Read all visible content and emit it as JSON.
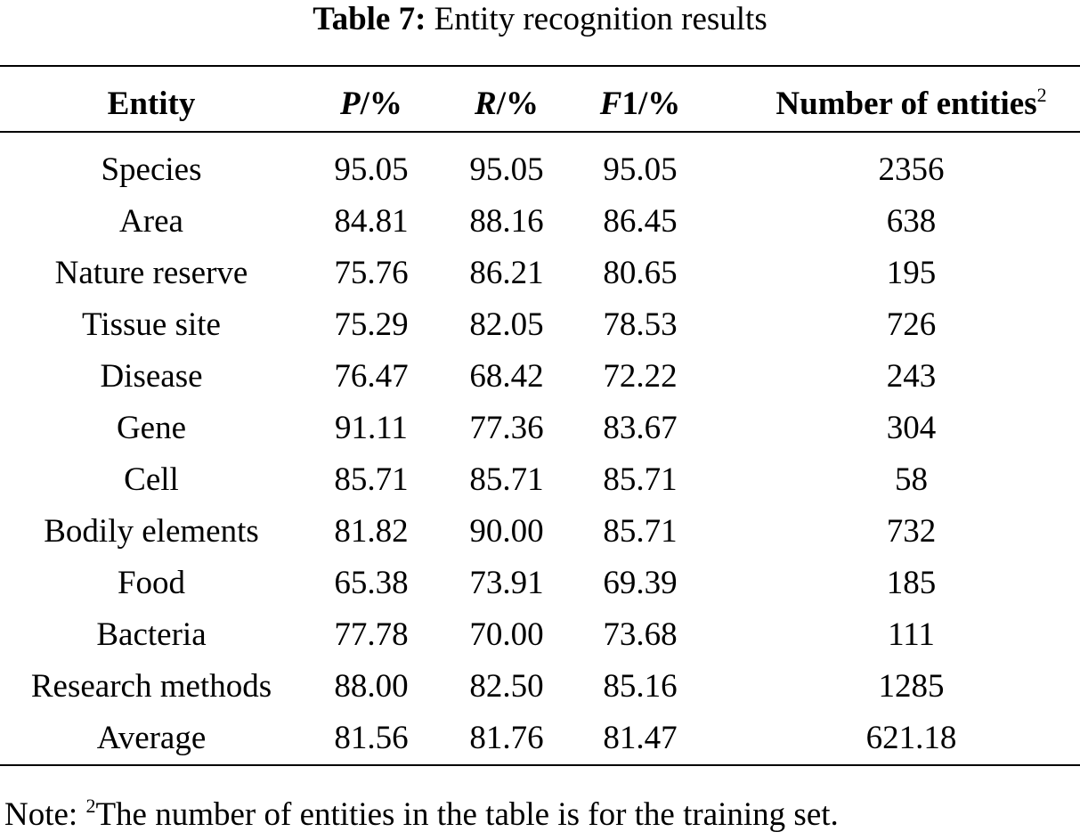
{
  "caption": {
    "label": "Table 7:",
    "title": "Entity recognition results"
  },
  "table": {
    "headers": [
      {
        "main": "Entity",
        "suffix": "",
        "sup": ""
      },
      {
        "main": "P",
        "suffix": "/%",
        "sup": ""
      },
      {
        "main": "R",
        "suffix": "/%",
        "sup": ""
      },
      {
        "main": "F",
        "suffix": "1/%",
        "sup": ""
      },
      {
        "main": "Number of entities",
        "suffix": "",
        "sup": "2"
      }
    ],
    "rows": [
      [
        "Species",
        "95.05",
        "95.05",
        "95.05",
        "2356"
      ],
      [
        "Area",
        "84.81",
        "88.16",
        "86.45",
        "638"
      ],
      [
        "Nature reserve",
        "75.76",
        "86.21",
        "80.65",
        "195"
      ],
      [
        "Tissue site",
        "75.29",
        "82.05",
        "78.53",
        "726"
      ],
      [
        "Disease",
        "76.47",
        "68.42",
        "72.22",
        "243"
      ],
      [
        "Gene",
        "91.11",
        "77.36",
        "83.67",
        "304"
      ],
      [
        "Cell",
        "85.71",
        "85.71",
        "85.71",
        "58"
      ],
      [
        "Bodily elements",
        "81.82",
        "90.00",
        "85.71",
        "732"
      ],
      [
        "Food",
        "65.38",
        "73.91",
        "69.39",
        "185"
      ],
      [
        "Bacteria",
        "77.78",
        "70.00",
        "73.68",
        "111"
      ],
      [
        "Research methods",
        "88.00",
        "82.50",
        "85.16",
        "1285"
      ],
      [
        "Average",
        "81.56",
        "81.76",
        "81.47",
        "621.18"
      ]
    ]
  },
  "note": {
    "prefix": "Note: ",
    "sup": "2",
    "text": "The number of entities in the table is for the training set."
  }
}
